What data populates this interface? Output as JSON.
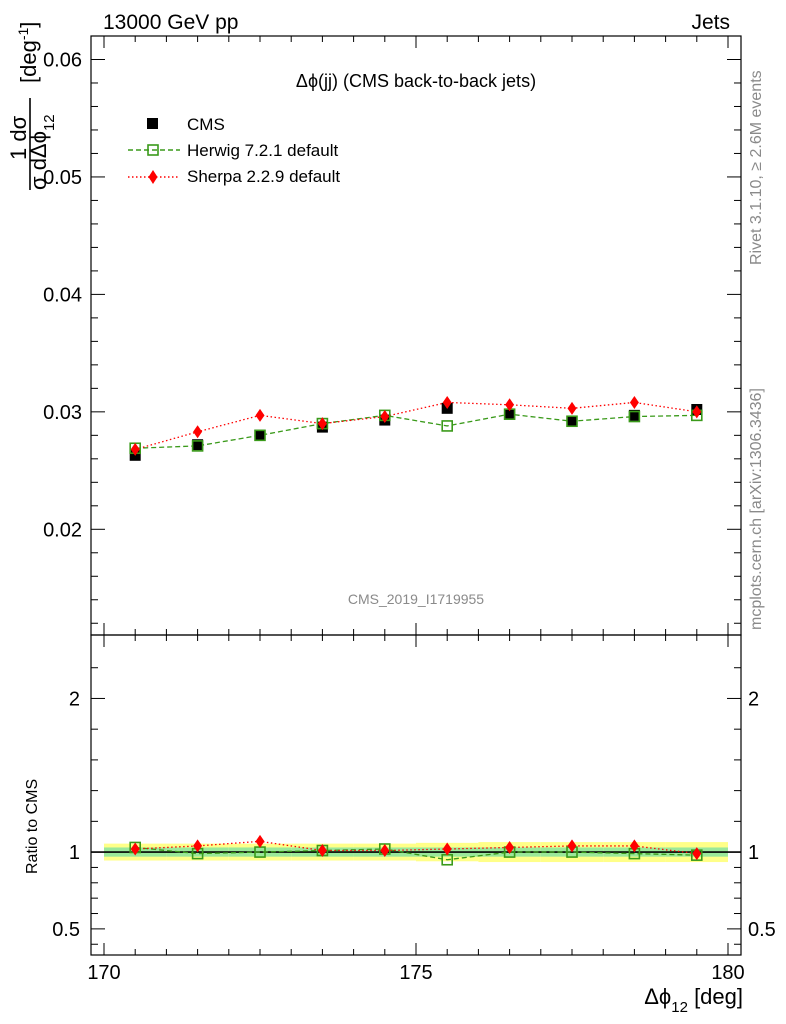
{
  "header": {
    "left": "13000 GeV pp",
    "right": "Jets"
  },
  "side_labels": {
    "top": "Rivet 3.1.10, ≥ 2.6M events",
    "bottom": "mcplots.cern.ch [arXiv:1306.3436]"
  },
  "plot_title": "Δϕ(jj) (CMS back-to-back jets)",
  "watermark": "CMS_2019_I1719955",
  "y_label_main": {
    "numerator": "1  dσ",
    "denominator": "σ dΔϕ",
    "denominator_sub": "12",
    "unit": "[deg",
    "unit_sup": "-1",
    "unit_close": "]"
  },
  "y_label_ratio": "Ratio to CMS",
  "x_label": {
    "main": "Δϕ",
    "sub": "12",
    "unit": " [deg]"
  },
  "legend": [
    {
      "label": "CMS",
      "color": "#000000",
      "marker": "square-filled"
    },
    {
      "label": "Herwig 7.2.1 default",
      "color": "#3a9a1a",
      "marker": "square-open"
    },
    {
      "label": "Sherpa 2.2.9 default",
      "color": "#ff0000",
      "marker": "diamond-filled"
    }
  ],
  "chart_data": {
    "type": "line",
    "xlim": [
      170,
      180
    ],
    "ylim": [
      0.011,
      0.062
    ],
    "ratio_ylim": [
      0.33,
      2.4
    ],
    "x_ticks": [
      "170",
      "175",
      "180"
    ],
    "y_ticks": [
      "0.02",
      "0.03",
      "0.04",
      "0.05",
      "0.06"
    ],
    "ratio_ticks": [
      "0.5",
      "1",
      "2"
    ],
    "x": [
      170.5,
      171.5,
      172.5,
      173.5,
      174.5,
      175.5,
      176.5,
      177.5,
      178.5,
      179.5
    ],
    "series": [
      {
        "name": "CMS",
        "values": [
          0.0263,
          0.0272,
          0.028,
          0.0287,
          0.0293,
          0.0303,
          0.0298,
          0.0292,
          0.0297,
          0.0302
        ],
        "errors": [
          0.0004,
          0.0004,
          0.0004,
          0.0004,
          0.0004,
          0.0004,
          0.0004,
          0.0004,
          0.0004,
          0.0004
        ]
      },
      {
        "name": "Herwig 7.2.1 default",
        "values": [
          0.0269,
          0.0271,
          0.028,
          0.029,
          0.0297,
          0.0288,
          0.0298,
          0.0292,
          0.0296,
          0.0297
        ]
      },
      {
        "name": "Sherpa 2.2.9 default",
        "values": [
          0.0268,
          0.0283,
          0.0297,
          0.029,
          0.0296,
          0.0308,
          0.0306,
          0.0303,
          0.0308,
          0.03
        ]
      }
    ],
    "ratio_series": [
      {
        "name": "Herwig 7.2.1 default",
        "values": [
          1.03,
          0.99,
          1.0,
          1.01,
          1.02,
          0.95,
          1.0,
          1.0,
          0.99,
          0.98
        ]
      },
      {
        "name": "Sherpa 2.2.9 default",
        "values": [
          1.02,
          1.04,
          1.07,
          1.01,
          1.01,
          1.02,
          1.03,
          1.04,
          1.04,
          0.99
        ]
      }
    ],
    "ratio_band_green": [
      0.03,
      0.03,
      0.03,
      0.03,
      0.03,
      0.03,
      0.03,
      0.03,
      0.03,
      0.03
    ],
    "ratio_band_yellow": [
      0.055,
      0.055,
      0.055,
      0.055,
      0.055,
      0.06,
      0.065,
      0.065,
      0.065,
      0.065
    ]
  }
}
